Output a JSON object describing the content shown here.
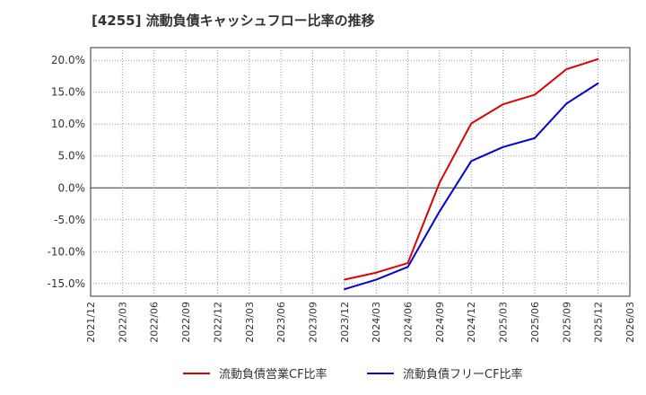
{
  "title": "[4255]  流動負債キャッシュフロー比率の推移",
  "chart_data": {
    "type": "line",
    "title": "[4255]  流動負債キャッシュフロー比率の推移",
    "xlabel": "",
    "ylabel": "",
    "ylim": [
      -17,
      22
    ],
    "yticks": [
      20,
      15,
      10,
      5,
      0,
      -5,
      -10,
      -15
    ],
    "ytick_labels": [
      "20.0%",
      "15.0%",
      "10.0%",
      "5.0%",
      "0.0%",
      "-5.0%",
      "-10.0%",
      "-15.0%"
    ],
    "xtick_labels": [
      "2021/12",
      "2022/03",
      "2022/06",
      "2022/09",
      "2022/12",
      "2023/03",
      "2023/06",
      "2023/09",
      "2023/12",
      "2024/03",
      "2024/06",
      "2024/09",
      "2024/12",
      "2025/03",
      "2025/06",
      "2025/09",
      "2025/12",
      "2026/03"
    ],
    "grid": true,
    "legend": "bottom",
    "x": [
      "2023/12",
      "2024/03",
      "2024/06",
      "2024/09",
      "2024/12",
      "2025/03",
      "2025/06",
      "2025/09",
      "2025/12"
    ],
    "series": [
      {
        "name": "流動負債営業CF比率",
        "color": "#e00000",
        "values": [
          -14.4,
          -13.3,
          -11.8,
          0.8,
          10.1,
          13.1,
          14.6,
          18.6,
          20.2
        ]
      },
      {
        "name": "流動負債フリーCF比率",
        "color": "#0000e0",
        "values": [
          -15.9,
          -14.4,
          -12.4,
          -3.7,
          4.2,
          6.4,
          7.8,
          13.2,
          16.4
        ]
      }
    ]
  }
}
